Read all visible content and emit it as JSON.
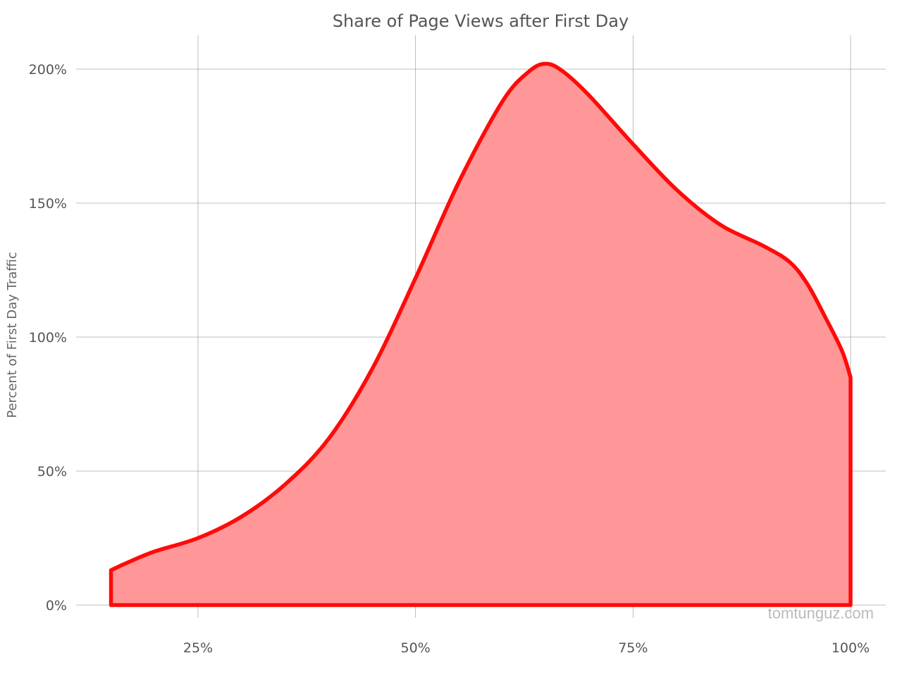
{
  "chart_data": {
    "type": "area",
    "title": "Share of Page Views after First Day",
    "xlabel": "",
    "ylabel": "Percent of First Day Traffic",
    "x_ticks": [
      25,
      50,
      75,
      100
    ],
    "x_tick_labels": [
      "25%",
      "50%",
      "75%",
      "100%"
    ],
    "y_ticks": [
      0,
      50,
      100,
      150,
      200
    ],
    "y_tick_labels": [
      "0%",
      "50%",
      "100%",
      "150%",
      "200%"
    ],
    "xlim": [
      10,
      104
    ],
    "ylim": [
      0,
      210
    ],
    "grid": true,
    "legend": "none",
    "series": [
      {
        "x": [
          15,
          17,
          20,
          25,
          30,
          35,
          40,
          45,
          50,
          55,
          60,
          63,
          65,
          67,
          70,
          75,
          80,
          85,
          90,
          93,
          95,
          97,
          99,
          100
        ],
        "y": [
          13,
          16,
          20,
          25,
          33,
          45,
          62,
          88,
          122,
          158,
          188,
          199,
          202,
          199,
          190,
          172,
          155,
          142,
          134,
          128,
          120,
          108,
          95,
          85
        ]
      }
    ],
    "colors": {
      "fill": "#ff9698",
      "line": "#ff0a0a",
      "grid": "#aaaaaa",
      "text": "#555555"
    }
  },
  "watermark": "tomtunguz.com"
}
